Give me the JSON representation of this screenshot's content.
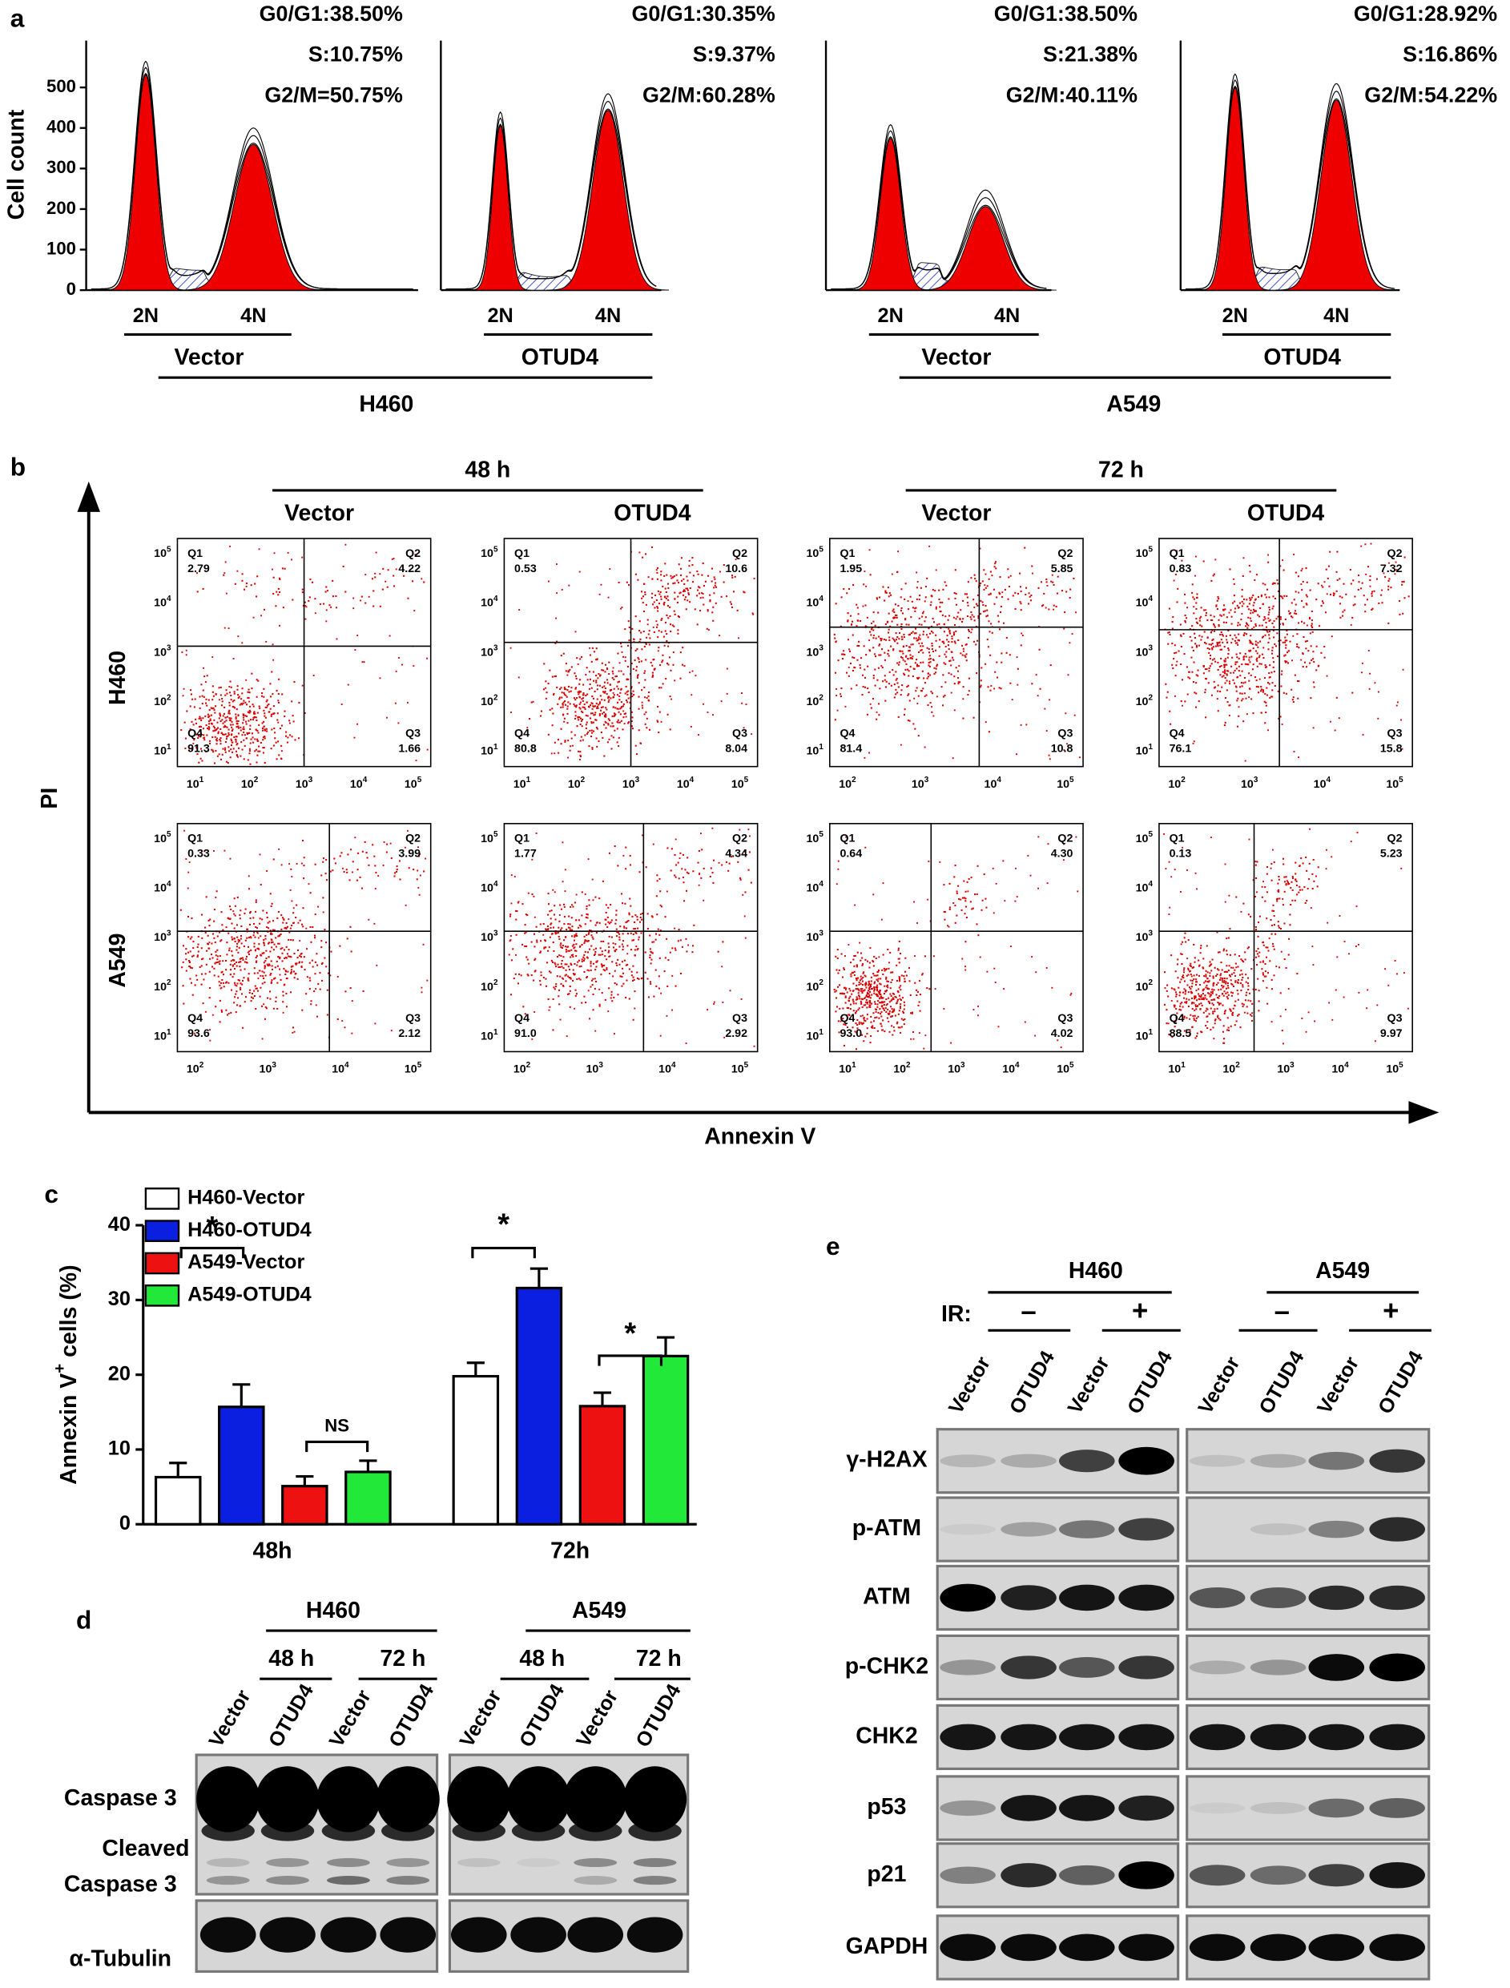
{
  "panel_a": {
    "label": "a",
    "y_label": "Cell count",
    "yticks": [
      0,
      100,
      200,
      300,
      400,
      500
    ],
    "plots": [
      {
        "stats": [
          "G0/G1:38.50%",
          "S:10.75%",
          "G2/M=50.75%"
        ],
        "peaks": [
          "2N",
          "4N"
        ]
      },
      {
        "stats": [
          "G0/G1:30.35%",
          "S:9.37%",
          "G2/M:60.28%"
        ],
        "peaks": [
          "2N",
          "4N"
        ]
      },
      {
        "stats": [
          "G0/G1:38.50%",
          "S:21.38%",
          "G2/M:40.11%"
        ],
        "peaks": [
          "2N",
          "4N"
        ]
      },
      {
        "stats": [
          "G0/G1:28.92%",
          "S:16.86%",
          "G2/M:54.22%"
        ],
        "peaks": [
          "2N",
          "4N"
        ]
      }
    ],
    "conditions": [
      "Vector",
      "OTUD4",
      "Vector",
      "OTUD4"
    ],
    "cell_lines": [
      "H460",
      "A549"
    ]
  },
  "panel_b": {
    "label": "b",
    "y_label": "PI",
    "x_label": "Annexin V",
    "timepoints": [
      "48 h",
      "72 h"
    ],
    "conditions": [
      "Vector",
      "OTUD4",
      "Vector",
      "OTUD4"
    ],
    "cell_lines": [
      "H460",
      "A549"
    ],
    "tick_base": "10",
    "y_exponents": [
      "1",
      "2",
      "3",
      "4",
      "5"
    ],
    "plots": [
      {
        "x_exponents": [
          "1",
          "2",
          "3",
          "4",
          "5"
        ],
        "quadrants": [
          {
            "name": "Q1",
            "value": "2.79"
          },
          {
            "name": "Q2",
            "value": "4.22"
          },
          {
            "name": "Q3",
            "value": "1.66"
          },
          {
            "name": "Q4",
            "value": "91.3"
          }
        ]
      },
      {
        "x_exponents": [
          "1",
          "2",
          "3",
          "4",
          "5"
        ],
        "quadrants": [
          {
            "name": "Q1",
            "value": "0.53"
          },
          {
            "name": "Q2",
            "value": "10.6"
          },
          {
            "name": "Q3",
            "value": "8.04"
          },
          {
            "name": "Q4",
            "value": "80.8"
          }
        ]
      },
      {
        "x_exponents": [
          "2",
          "3",
          "4",
          "5"
        ],
        "quadrants": [
          {
            "name": "Q1",
            "value": "1.95"
          },
          {
            "name": "Q2",
            "value": "5.85"
          },
          {
            "name": "Q3",
            "value": "10.8"
          },
          {
            "name": "Q4",
            "value": "81.4"
          }
        ]
      },
      {
        "x_exponents": [
          "2",
          "3",
          "4",
          "5"
        ],
        "quadrants": [
          {
            "name": "Q1",
            "value": "0.83"
          },
          {
            "name": "Q2",
            "value": "7.32"
          },
          {
            "name": "Q3",
            "value": "15.8"
          },
          {
            "name": "Q4",
            "value": "76.1"
          }
        ]
      },
      {
        "x_exponents": [
          "2",
          "3",
          "4",
          "5"
        ],
        "quadrants": [
          {
            "name": "Q1",
            "value": "0.33"
          },
          {
            "name": "Q2",
            "value": "3.99"
          },
          {
            "name": "Q3",
            "value": "2.12"
          },
          {
            "name": "Q4",
            "value": "93.6"
          }
        ]
      },
      {
        "x_exponents": [
          "2",
          "3",
          "4",
          "5"
        ],
        "quadrants": [
          {
            "name": "Q1",
            "value": "1.77"
          },
          {
            "name": "Q2",
            "value": "4.34"
          },
          {
            "name": "Q3",
            "value": "2.92"
          },
          {
            "name": "Q4",
            "value": "91.0"
          }
        ]
      },
      {
        "x_exponents": [
          "1",
          "2",
          "3",
          "4",
          "5"
        ],
        "quadrants": [
          {
            "name": "Q1",
            "value": "0.64"
          },
          {
            "name": "Q2",
            "value": "4.30"
          },
          {
            "name": "Q3",
            "value": "4.02"
          },
          {
            "name": "Q4",
            "value": "93.0"
          }
        ]
      },
      {
        "x_exponents": [
          "1",
          "2",
          "3",
          "4",
          "5"
        ],
        "quadrants": [
          {
            "name": "Q1",
            "value": "0.13"
          },
          {
            "name": "Q2",
            "value": "5.23"
          },
          {
            "name": "Q3",
            "value": "9.97"
          },
          {
            "name": "Q4",
            "value": "88.5"
          }
        ]
      }
    ]
  },
  "chart_data": {
    "type": "bar",
    "label": "c",
    "y_label": {
      "main": "Annexin V",
      "sup": "+",
      "rest": " cells (%)"
    },
    "categories": [
      "48h",
      "72h"
    ],
    "series": [
      {
        "name": "H460-Vector",
        "color": "#ffffff",
        "values": [
          6.3,
          19.8
        ],
        "errors": [
          1.9,
          1.8
        ]
      },
      {
        "name": "H460-OTUD4",
        "color": "#0a1fe0",
        "values": [
          15.7,
          31.6
        ],
        "errors": [
          3.0,
          2.6
        ]
      },
      {
        "name": "A549-Vector",
        "color": "#ee1111",
        "values": [
          5.1,
          15.8
        ],
        "errors": [
          1.3,
          1.8
        ]
      },
      {
        "name": "A549-OTUD4",
        "color": "#22e83a",
        "values": [
          7.0,
          22.5
        ],
        "errors": [
          1.5,
          2.5
        ]
      }
    ],
    "ylim": [
      0,
      40
    ],
    "yticks": [
      0,
      10,
      20,
      30,
      40
    ],
    "annotations": [
      "*",
      "NS",
      "*",
      "*"
    ]
  },
  "panel_d": {
    "label": "d",
    "cell_lines": [
      "H460",
      "A549"
    ],
    "timepoints": [
      "48 h",
      "72 h",
      "48 h",
      "72 h"
    ],
    "lanes": [
      "Vector",
      "OTUD4",
      "Vector",
      "OTUD4",
      "Vector",
      "OTUD4",
      "Vector",
      "OTUD4"
    ],
    "rows": [
      "Caspase 3",
      "Cleaved",
      "Caspase 3",
      "α-Tubulin"
    ]
  },
  "panel_e": {
    "label": "e",
    "cell_lines": [
      "H460",
      "A549"
    ],
    "treatment_label": "IR:",
    "treatments": [
      "–",
      "+",
      "–",
      "+"
    ],
    "lanes": [
      "Vector",
      "OTUD4",
      "Vector",
      "OTUD4",
      "Vector",
      "OTUD4",
      "Vector",
      "OTUD4"
    ],
    "rows": [
      "γ-H2AX",
      "p-ATM",
      "ATM",
      "p-CHK2",
      "CHK2",
      "p53",
      "p21",
      "GAPDH"
    ]
  }
}
